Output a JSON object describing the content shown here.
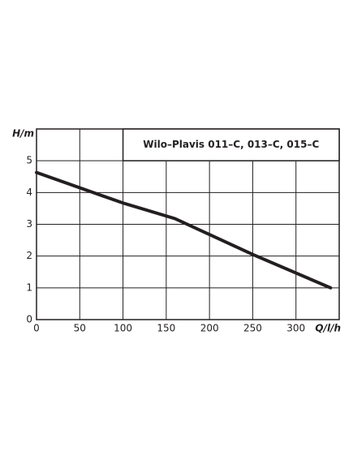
{
  "chart_data": {
    "type": "line",
    "title": "Wilo–Plavis 011–C, 013–C, 015–C",
    "x_label": "Q/l/h",
    "y_label": "H/m",
    "x": [
      0,
      100,
      160,
      250,
      340
    ],
    "series": [
      {
        "name": "Wilo–Plavis 011–C, 013–C, 015–C",
        "color": "#231f20",
        "values": [
          4.63,
          3.67,
          3.18,
          2.05,
          1.0
        ]
      }
    ],
    "xlim": [
      0,
      350
    ],
    "xticks": [
      0,
      50,
      100,
      150,
      200,
      250,
      300
    ],
    "ylim": [
      0,
      6
    ],
    "yticks": [
      0,
      1,
      2,
      3,
      4,
      5
    ],
    "grid": true
  }
}
